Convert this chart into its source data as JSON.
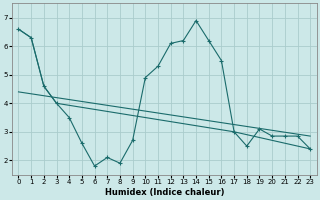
{
  "title": "",
  "xlabel": "Humidex (Indice chaleur)",
  "background_color": "#cce8e8",
  "line_color": "#1a6b6b",
  "grid_color": "#aacccc",
  "xlim": [
    -0.5,
    23.5
  ],
  "ylim": [
    1.5,
    7.5
  ],
  "yticks": [
    2,
    3,
    4,
    5,
    6,
    7
  ],
  "xticks": [
    0,
    1,
    2,
    3,
    4,
    5,
    6,
    7,
    8,
    9,
    10,
    11,
    12,
    13,
    14,
    15,
    16,
    17,
    18,
    19,
    20,
    21,
    22,
    23
  ],
  "series1_x": [
    0,
    1,
    2,
    3,
    4,
    5,
    6,
    7,
    8,
    9,
    10,
    11,
    12,
    13,
    14,
    15,
    16,
    17,
    18,
    19,
    20,
    21,
    22,
    23
  ],
  "series1_y": [
    6.6,
    6.3,
    4.6,
    4.0,
    3.5,
    2.6,
    1.8,
    2.1,
    1.9,
    2.7,
    4.9,
    5.3,
    6.1,
    6.2,
    6.9,
    6.2,
    5.5,
    3.0,
    2.5,
    3.1,
    2.85,
    2.85,
    2.85,
    2.4
  ],
  "series2_x": [
    0,
    1,
    2,
    3,
    10,
    17,
    23
  ],
  "series2_y": [
    6.6,
    6.3,
    4.6,
    4.0,
    3.5,
    3.0,
    2.4
  ],
  "series3_x": [
    0,
    23
  ],
  "series3_y": [
    4.4,
    2.85
  ]
}
